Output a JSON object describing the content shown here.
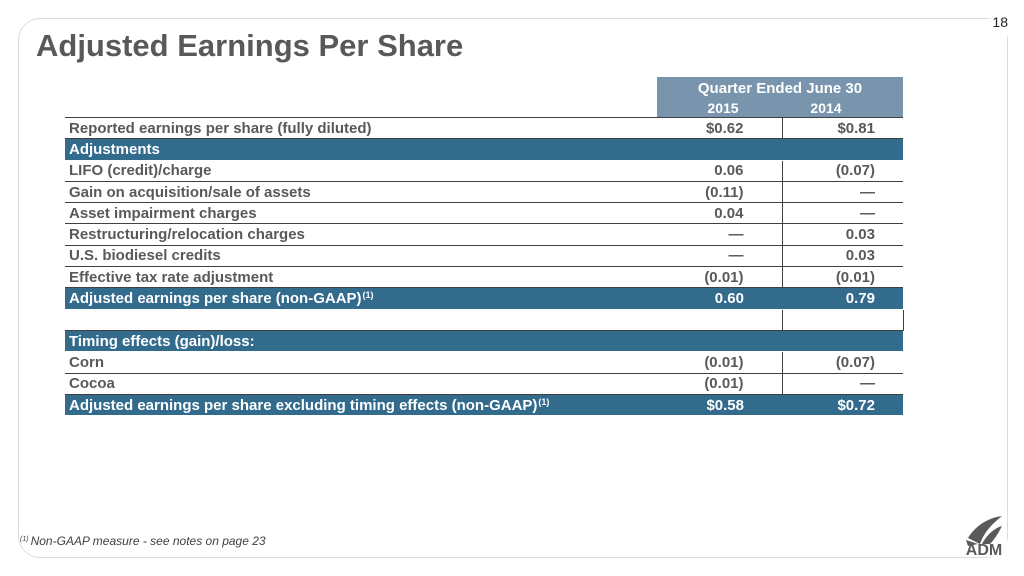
{
  "page_number": "18",
  "title": "Adjusted Earnings Per Share",
  "header": {
    "period": "Quarter Ended June 30",
    "year_1": "2015",
    "year_2": "2014"
  },
  "rows": [
    {
      "label": "Reported earnings per share (fully diluted)",
      "v2015": "$0.62",
      "v2014": "$0.81"
    },
    {
      "label": "Adjustments",
      "v2015": "",
      "v2014": ""
    },
    {
      "label": "LIFO (credit)/charge",
      "v2015": "0.06",
      "v2014": "(0.07)"
    },
    {
      "label": "Gain on acquisition/sale of assets",
      "v2015": "(0.11)",
      "v2014": "—"
    },
    {
      "label": "Asset impairment charges",
      "v2015": "0.04",
      "v2014": "—"
    },
    {
      "label": "Restructuring/relocation charges",
      "v2015": "—",
      "v2014": "0.03"
    },
    {
      "label": "U.S. biodiesel credits",
      "v2015": "—",
      "v2014": "0.03"
    },
    {
      "label": "Effective tax rate adjustment",
      "v2015": "(0.01)",
      "v2014": "(0.01)"
    },
    {
      "label": "Adjusted earnings per share (non-GAAP)",
      "note": "(1)",
      "v2015": "0.60",
      "v2014": "0.79"
    },
    {
      "label": "",
      "v2015": "",
      "v2014": ""
    },
    {
      "label": "Timing effects (gain)/loss:",
      "v2015": "",
      "v2014": ""
    },
    {
      "label": "Corn",
      "v2015": "(0.01)",
      "v2014": "(0.07)"
    },
    {
      "label": "Cocoa",
      "v2015": "(0.01)",
      "v2014": "—"
    },
    {
      "label": "Adjusted earnings per share excluding timing effects (non-GAAP)",
      "note": "(1)",
      "v2015": "$0.58",
      "v2014": "$0.72"
    }
  ],
  "footnote": {
    "marker": "(1)",
    "text": "Non-GAAP measure - see notes on page 23"
  },
  "logo": {
    "text": "ADM",
    "icon": "adm-leaf-logo-icon"
  },
  "colors": {
    "title": "#595959",
    "section_band": "#336b8d",
    "header_band": "#7895ad"
  }
}
